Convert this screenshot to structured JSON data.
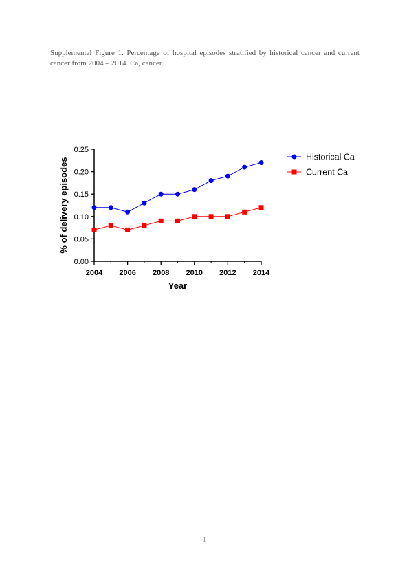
{
  "caption": "Supplemental Figure 1. Percentage of hospital episodes stratified by historical cancer and current cancer from 2004 – 2014. Ca, cancer.",
  "page_number": "1",
  "chart_data": {
    "type": "line",
    "title": "",
    "xlabel": "Year",
    "ylabel": "% of delivery episodes",
    "x": [
      2004,
      2005,
      2006,
      2007,
      2008,
      2009,
      2010,
      2011,
      2012,
      2013,
      2014
    ],
    "xlim": [
      2004,
      2014
    ],
    "ylim": [
      0,
      0.25
    ],
    "xticks": [
      "2004",
      "2006",
      "2008",
      "2010",
      "2012",
      "2014"
    ],
    "yticks": [
      "0.00",
      "0.05",
      "0.10",
      "0.15",
      "0.20",
      "0.25"
    ],
    "grid": false,
    "legend_position": "right",
    "series": [
      {
        "name": "Historical Ca",
        "marker": "circle",
        "color": "#0000ff",
        "values": [
          0.12,
          0.12,
          0.11,
          0.13,
          0.15,
          0.15,
          0.16,
          0.18,
          0.19,
          0.21,
          0.22
        ]
      },
      {
        "name": "Current Ca",
        "marker": "square",
        "color": "#ff0000",
        "values": [
          0.07,
          0.08,
          0.07,
          0.08,
          0.09,
          0.09,
          0.1,
          0.1,
          0.1,
          0.11,
          0.12
        ]
      }
    ]
  }
}
